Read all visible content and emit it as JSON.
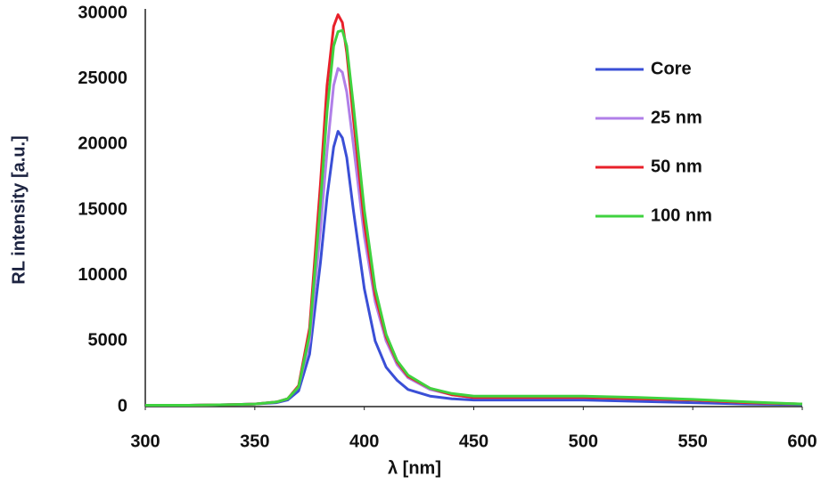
{
  "chart_data": {
    "type": "line",
    "x_label": "λ [nm]",
    "y_label": "RL intensity [a.u.]",
    "x": [
      300,
      320,
      340,
      350,
      360,
      365,
      370,
      375,
      380,
      383,
      386,
      388,
      390,
      392,
      395,
      400,
      405,
      410,
      415,
      420,
      430,
      440,
      450,
      475,
      500,
      525,
      550,
      575,
      600
    ],
    "series": [
      {
        "name": "Core",
        "color": "#3a4fd6",
        "values": [
          100,
          100,
          150,
          200,
          300,
          500,
          1200,
          4000,
          11000,
          16000,
          19800,
          21000,
          20500,
          19000,
          15000,
          9000,
          5000,
          3000,
          2000,
          1300,
          800,
          600,
          500,
          500,
          500,
          400,
          300,
          200,
          150
        ]
      },
      {
        "name": "25 nm",
        "color": "#b07fe8",
        "values": [
          100,
          100,
          150,
          200,
          350,
          600,
          1500,
          5000,
          13500,
          19500,
          24500,
          25800,
          25500,
          24000,
          20000,
          13000,
          8000,
          5000,
          3200,
          2200,
          1300,
          900,
          700,
          700,
          700,
          600,
          500,
          300,
          200
        ]
      },
      {
        "name": "50 nm",
        "color": "#e8202a",
        "values": [
          100,
          100,
          150,
          200,
          350,
          600,
          1600,
          6000,
          17000,
          24500,
          29000,
          29900,
          29300,
          27000,
          22000,
          14000,
          8500,
          5300,
          3400,
          2300,
          1400,
          900,
          700,
          700,
          700,
          600,
          500,
          300,
          200
        ]
      },
      {
        "name": "100 nm",
        "color": "#3fd23f",
        "values": [
          100,
          100,
          150,
          200,
          350,
          600,
          1500,
          5500,
          15500,
          22500,
          27500,
          28600,
          28700,
          27500,
          23000,
          15000,
          9000,
          5500,
          3500,
          2400,
          1400,
          1000,
          800,
          800,
          800,
          700,
          550,
          350,
          200
        ]
      }
    ],
    "xlim": [
      300,
      600
    ],
    "xticks": [
      300,
      350,
      400,
      450,
      500,
      550,
      600
    ],
    "ylim": [
      0,
      30000
    ],
    "yticks": [
      0,
      5000,
      10000,
      15000,
      20000,
      25000,
      30000
    ],
    "grid": false,
    "legend": "right"
  }
}
